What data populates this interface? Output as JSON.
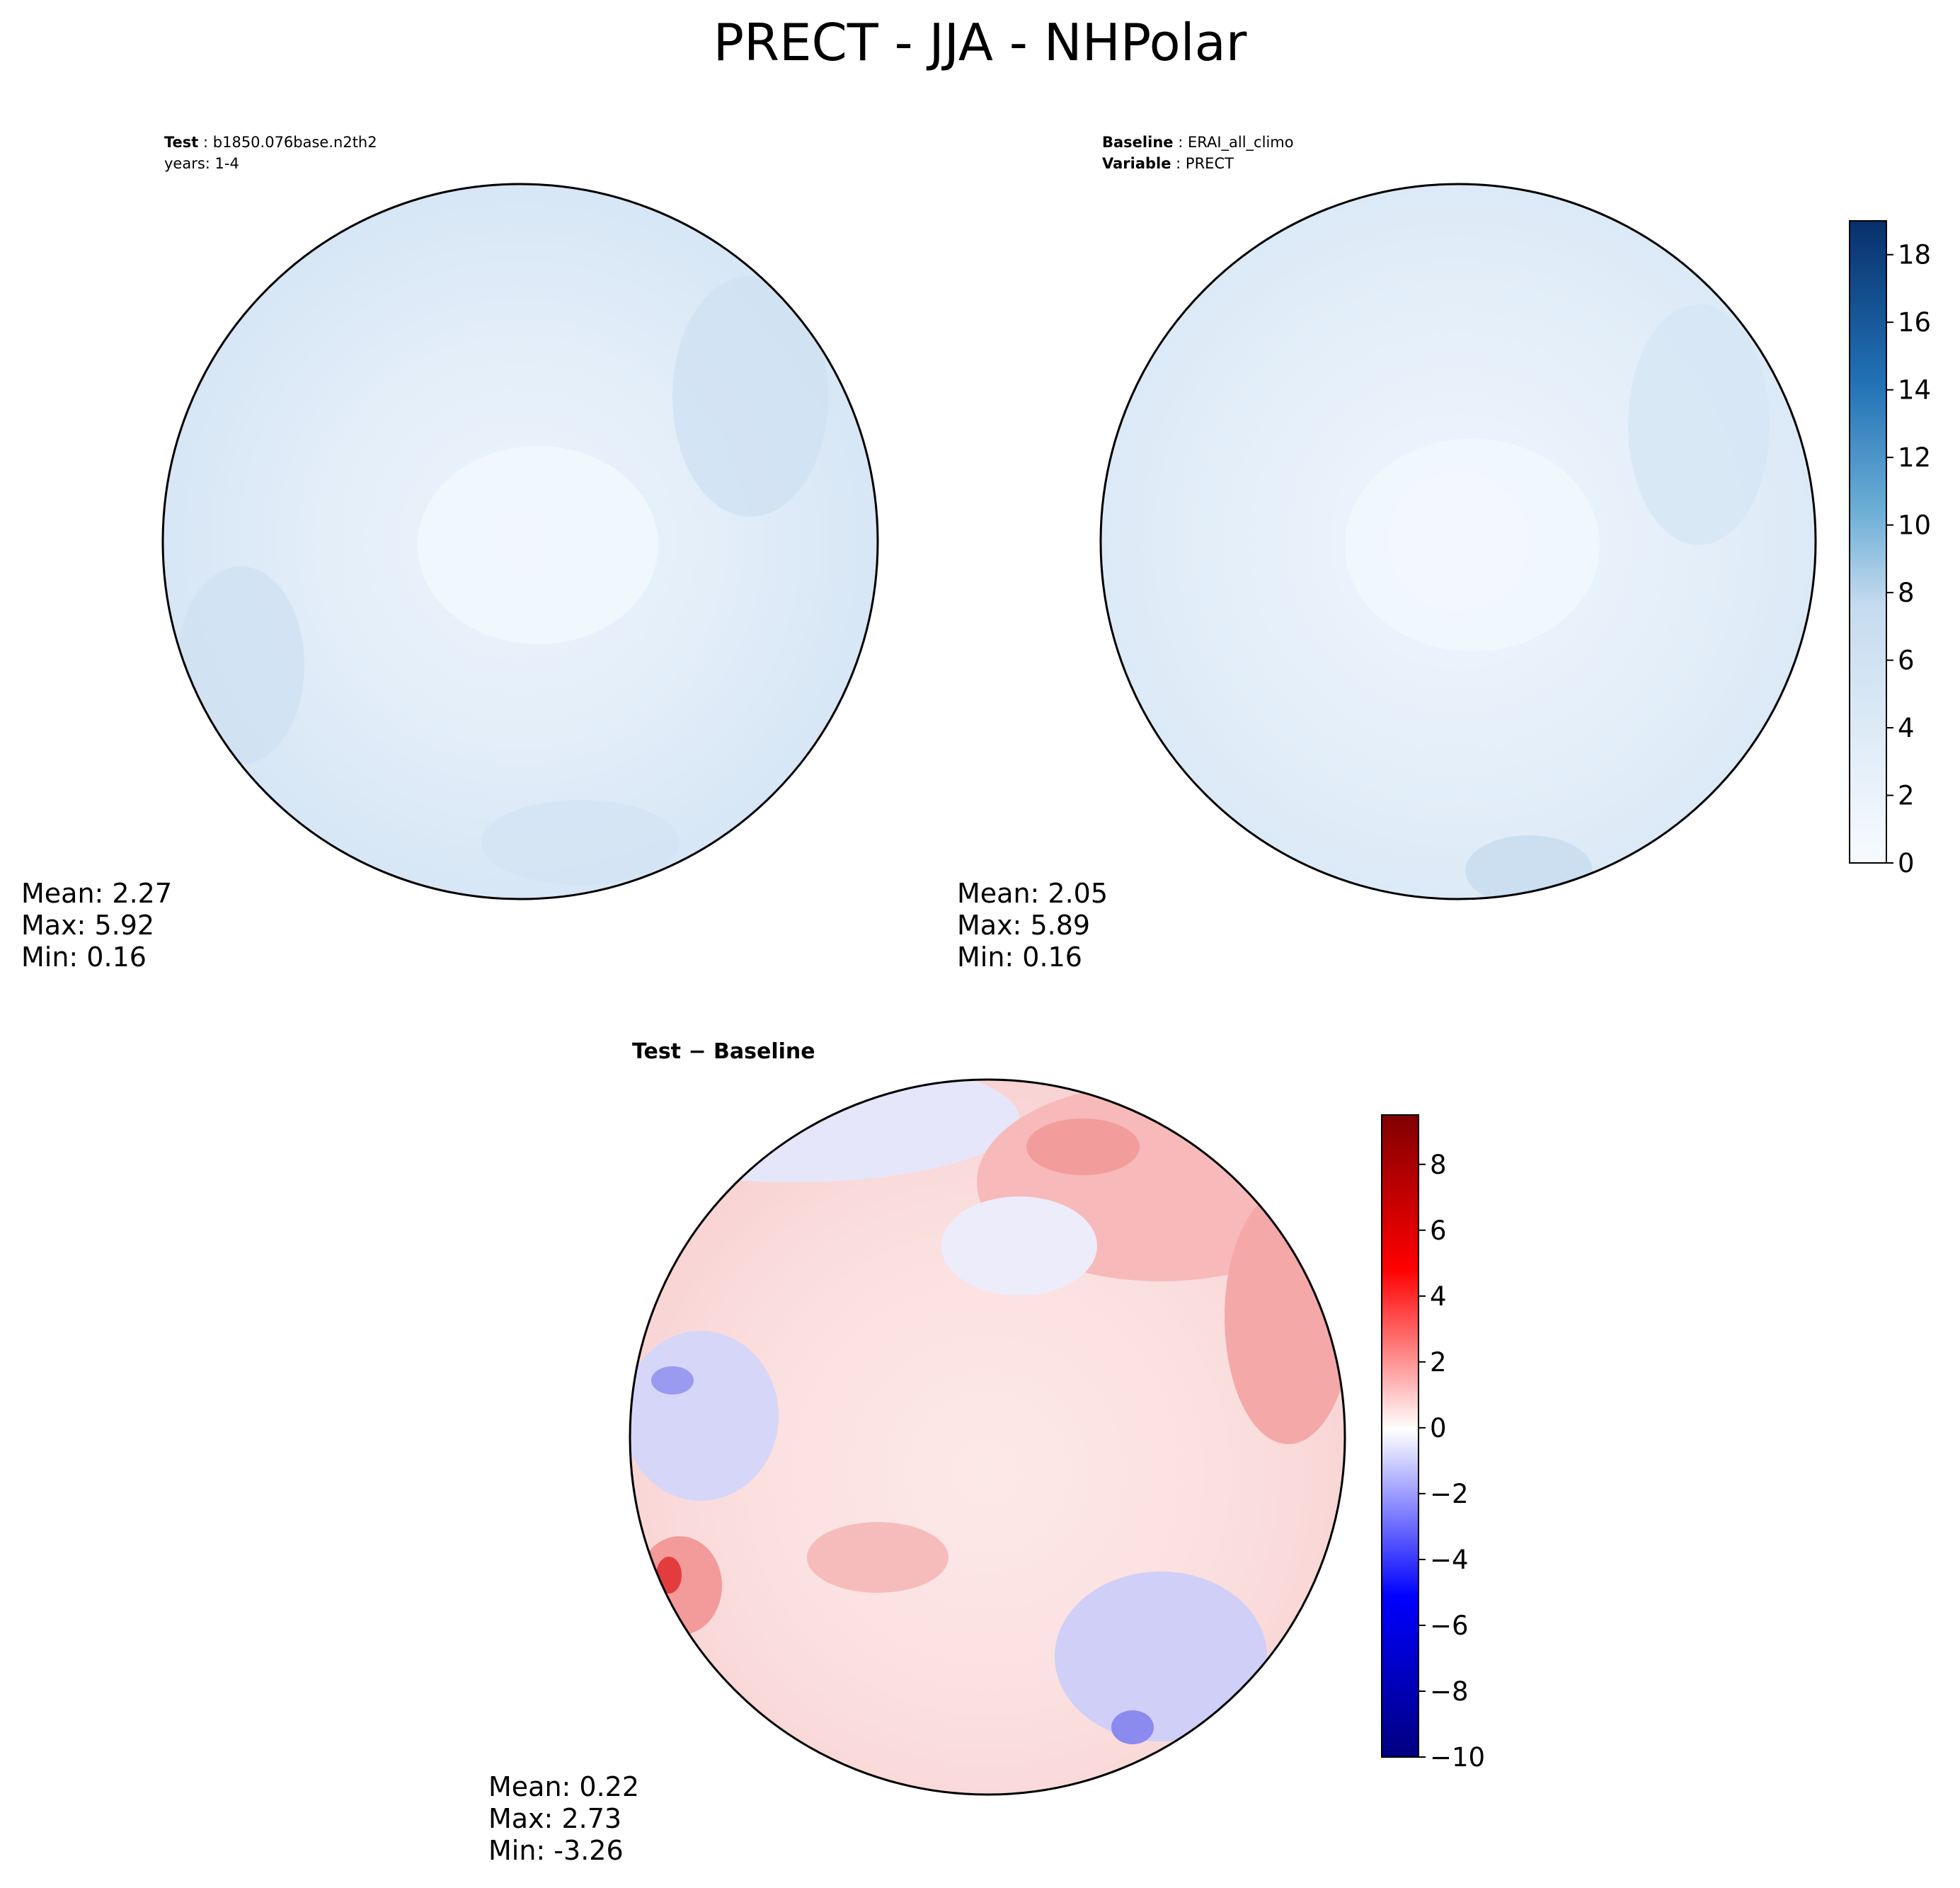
{
  "title": "PRECT - JJA - NHPolar",
  "test_header": {
    "label": "Test",
    "value": "b1850.076base.n2th2",
    "years": "years: 1-4"
  },
  "baseline_header": {
    "label1": "Baseline",
    "value1": "ERAI_all_climo",
    "label2": "Variable",
    "value2": "PRECT"
  },
  "diff_title": "Test − Baseline",
  "test_stats": {
    "mean": "Mean:  2.27",
    "max": "Max:  5.92",
    "min": "Min:  0.16"
  },
  "baseline_stats": {
    "mean": "Mean:  2.05",
    "max": "Max:  5.89",
    "min": "Min:  0.16"
  },
  "diff_stats": {
    "mean": "Mean:  0.22",
    "max": "Max:  2.73",
    "min": "Min: -3.26"
  },
  "colors": {
    "blue_low": "#f4f9fe",
    "blue_mid": "#dbe9f6",
    "blue_high": "#08306b",
    "red_high": "#800000",
    "blue_neg": "#000080",
    "neutral": "#ffffff",
    "coast": "#000000"
  },
  "colorbar_seq": {
    "ticks": [
      "0",
      "2",
      "4",
      "6",
      "8",
      "10",
      "12",
      "14",
      "16",
      "18"
    ],
    "vmin": 0,
    "vmax": 19
  },
  "colorbar_div": {
    "ticks": [
      "8",
      "6",
      "4",
      "2",
      "0",
      "−2",
      "−4",
      "−6",
      "−8",
      "−10"
    ],
    "vmin": -10,
    "vmax": 9.5
  }
}
